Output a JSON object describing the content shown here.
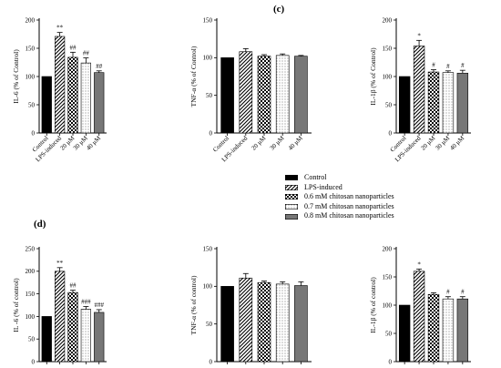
{
  "labels": {
    "panel_c": "(c)",
    "panel_d": "(d)"
  },
  "colors": {
    "control": "#000000",
    "mid_gray": "#777777",
    "black": "#000000"
  },
  "legend": {
    "items": [
      {
        "label": "Control",
        "pattern": "solid-black"
      },
      {
        "label": "LPS-induced",
        "pattern": "diagonal-hatch"
      },
      {
        "label": "0.6 mM chitosan nanoparticles",
        "pattern": "checker"
      },
      {
        "label": "0.7 mM chitosan nanoparticles",
        "pattern": "dots"
      },
      {
        "label": "0.8 mM chitosan nanoparticles",
        "pattern": "gray"
      }
    ]
  },
  "chart_data": [
    {
      "panel": "c-left",
      "type": "bar",
      "categories": [
        "Control",
        "LPS-induced",
        "20 μM",
        "30 μM",
        "40 μM"
      ],
      "patterns": [
        "solid-black",
        "diagonal-hatch",
        "checker",
        "dots",
        "gray"
      ],
      "values": [
        100,
        171,
        134,
        124,
        107
      ],
      "errors": [
        0,
        7,
        9,
        9,
        3
      ],
      "annotations": [
        "",
        "**",
        "##",
        "##",
        "##"
      ],
      "ylabel": "IL-6 (% of Control)",
      "ylim": [
        0,
        200
      ],
      "yticks": [
        0,
        50,
        100,
        150,
        200
      ]
    },
    {
      "panel": "c-middle",
      "type": "bar",
      "categories": [
        "Control",
        "LPS-induced",
        "20 μM",
        "30 μM",
        "40 μM"
      ],
      "patterns": [
        "solid-black",
        "diagonal-hatch",
        "checker",
        "dots",
        "gray"
      ],
      "values": [
        100,
        108,
        102,
        103,
        102
      ],
      "errors": [
        0,
        4,
        2,
        2,
        1
      ],
      "annotations": [
        "",
        "",
        "",
        "",
        ""
      ],
      "ylabel": "TNF-α (% of Control)",
      "ylim": [
        0,
        150
      ],
      "yticks": [
        0,
        50,
        100,
        150
      ]
    },
    {
      "panel": "c-right",
      "type": "bar",
      "categories": [
        "Control",
        "LPS-induced",
        "20 μM",
        "30 μM",
        "40 μM"
      ],
      "patterns": [
        "solid-black",
        "diagonal-hatch",
        "checker",
        "dots",
        "gray"
      ],
      "values": [
        100,
        154,
        108,
        107,
        106
      ],
      "errors": [
        0,
        10,
        4,
        3,
        5
      ],
      "annotations": [
        "",
        "*",
        "#",
        "#",
        "#"
      ],
      "ylabel": "IL-1β (% of Control)",
      "ylim": [
        0,
        200
      ],
      "yticks": [
        0,
        50,
        100,
        150,
        200
      ]
    },
    {
      "panel": "d-left",
      "type": "bar",
      "categories": [
        "",
        "",
        "",
        "",
        ""
      ],
      "patterns": [
        "solid-black",
        "diagonal-hatch",
        "checker",
        "dots",
        "gray"
      ],
      "values": [
        100,
        200,
        153,
        116,
        109
      ],
      "errors": [
        0,
        8,
        5,
        6,
        6
      ],
      "annotations": [
        "",
        "**",
        "##",
        "###",
        "###"
      ],
      "ylabel": "IL -6 (% of control)",
      "ylim": [
        0,
        250
      ],
      "yticks": [
        0,
        50,
        100,
        150,
        200,
        250
      ]
    },
    {
      "panel": "d-middle",
      "type": "bar",
      "categories": [
        "",
        "",
        "",
        "",
        ""
      ],
      "patterns": [
        "solid-black",
        "diagonal-hatch",
        "checker",
        "dots",
        "gray"
      ],
      "values": [
        100,
        111,
        105,
        103,
        101
      ],
      "errors": [
        0,
        6,
        2,
        3,
        5
      ],
      "annotations": [
        "",
        "",
        "",
        "",
        ""
      ],
      "ylabel": "TNF-α (% of control)",
      "ylim": [
        0,
        150
      ],
      "yticks": [
        0,
        50,
        100,
        150
      ]
    },
    {
      "panel": "d-right",
      "type": "bar",
      "categories": [
        "",
        "",
        "",
        "",
        ""
      ],
      "patterns": [
        "solid-black",
        "diagonal-hatch",
        "checker",
        "dots",
        "gray"
      ],
      "values": [
        100,
        160,
        119,
        111,
        111
      ],
      "errors": [
        0,
        4,
        3,
        4,
        4
      ],
      "annotations": [
        "",
        "*",
        "",
        "#",
        "#"
      ],
      "ylabel": "IL-1β (% of control)",
      "ylim": [
        0,
        200
      ],
      "yticks": [
        0,
        50,
        100,
        150,
        200
      ]
    }
  ]
}
